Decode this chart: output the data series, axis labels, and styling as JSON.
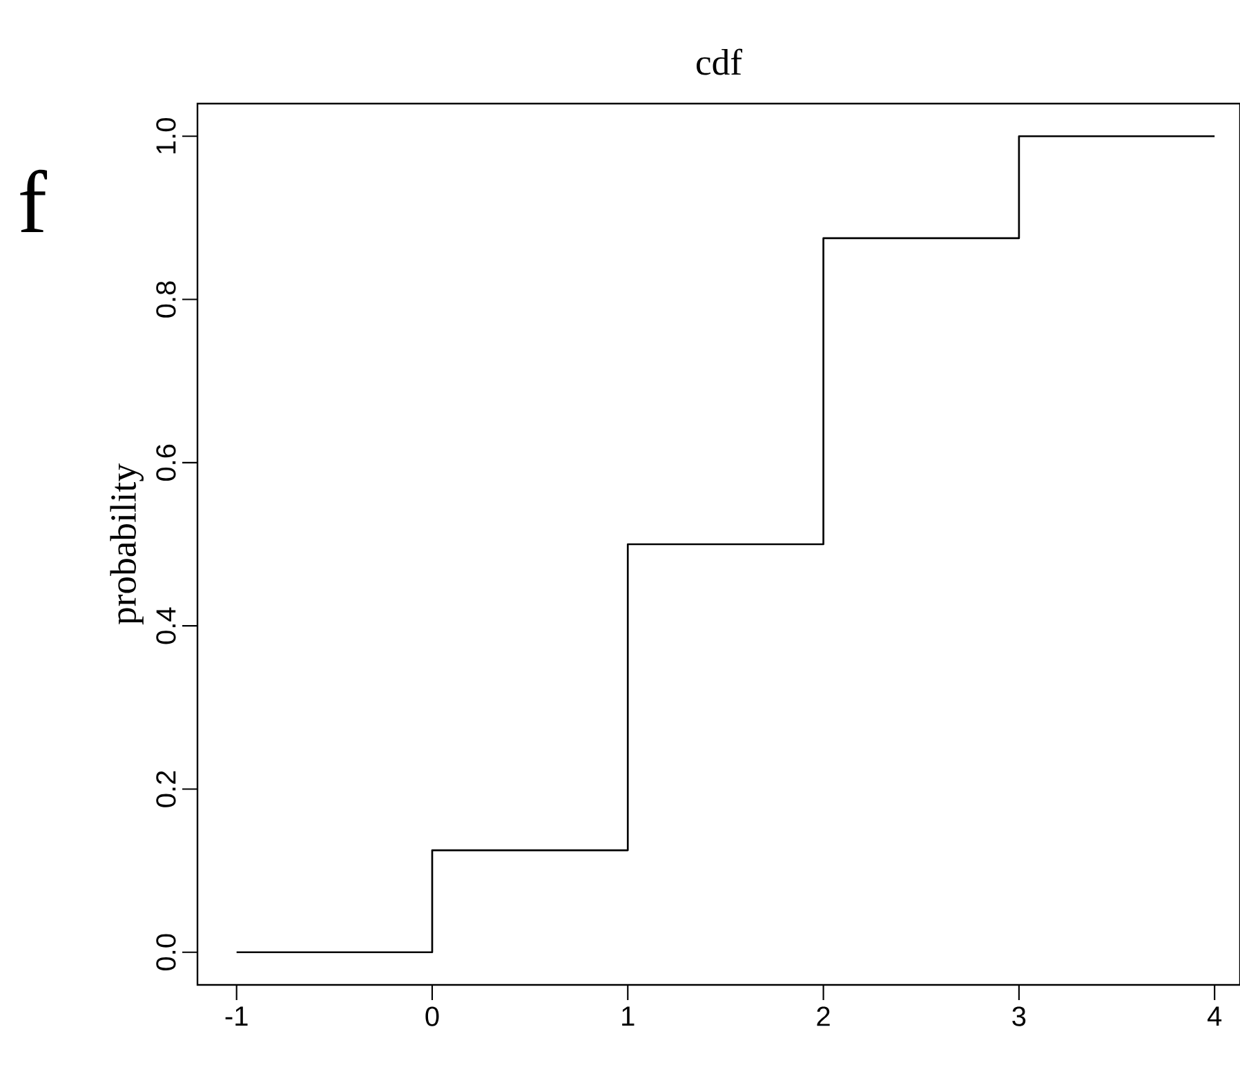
{
  "chart_data": {
    "type": "step",
    "title": "cdf",
    "ylabel": "probability",
    "annotations": [
      "f"
    ],
    "x": [
      -1,
      0,
      1,
      2,
      3,
      4
    ],
    "values": [
      0,
      0.125,
      0.5,
      0.875,
      1,
      1
    ],
    "color": "#000000",
    "xlim": [
      -1.2,
      4.13
    ],
    "ylim": [
      -0.04,
      1.04
    ],
    "xticks": [
      -1,
      0,
      1,
      2,
      3,
      4
    ],
    "yticks": [
      {
        "value": 0,
        "label": "0.0"
      },
      {
        "value": 0.2,
        "label": "0.2"
      },
      {
        "value": 0.4,
        "label": "0.4"
      },
      {
        "value": 0.6,
        "label": "0.6"
      },
      {
        "value": 0.8,
        "label": "0.8"
      },
      {
        "value": 1,
        "label": "1.0"
      }
    ]
  }
}
